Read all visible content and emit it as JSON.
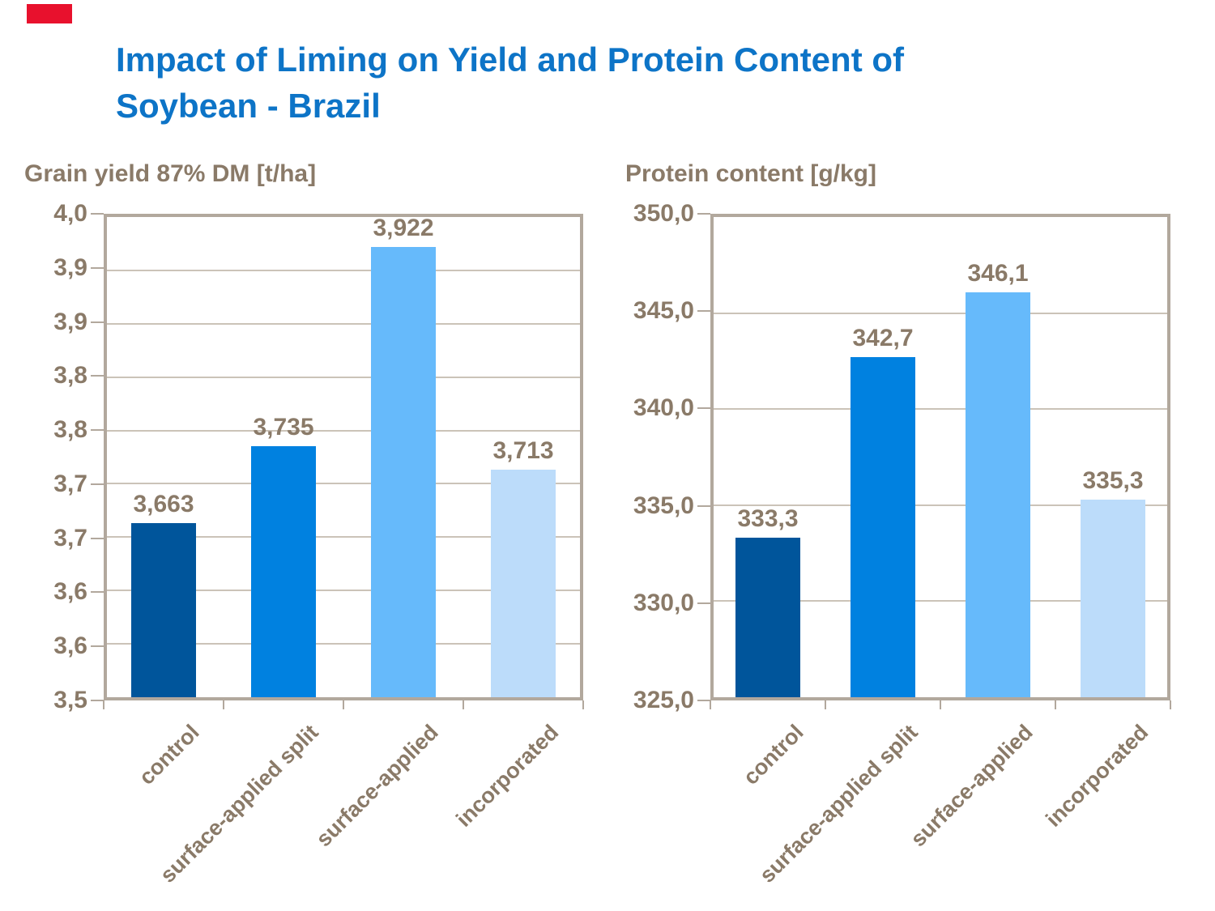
{
  "slide": {
    "title_line1": "Impact of Liming on Yield and Protein Content of",
    "title_line2": "Soybean - Brazil",
    "colors": {
      "title_blue": "#0d74c7",
      "brand_red": "#e8112d",
      "text_brown": "#8a7a68",
      "frame_tan": "#b2a89d",
      "gridline_tan": "#cbc3b8"
    }
  },
  "chart_data": [
    {
      "type": "bar",
      "title": "Grain yield 87% DM [t/ha]",
      "categories": [
        "control",
        "surface-applied split",
        "surface-applied",
        "incorporated"
      ],
      "values": [
        3.663,
        3.735,
        3.922,
        3.713
      ],
      "value_labels": [
        "3,663",
        "3,735",
        "3,922",
        "3,713"
      ],
      "ylim": [
        3.5,
        4.0
      ],
      "plot_ylim": [
        3.5,
        3.95
      ],
      "ytick_labels": [
        "4,0",
        "3,9",
        "3,9",
        "3,8",
        "3,8",
        "3,7",
        "3,7",
        "3,6",
        "3,6",
        "3,5"
      ],
      "bar_colors": [
        "#00559b",
        "#0081e0",
        "#66bafb",
        "#bcdcfa"
      ],
      "grid": true,
      "legend": "none",
      "xlabel": "",
      "ylabel": ""
    },
    {
      "type": "bar",
      "title": "Protein content [g/kg]",
      "categories": [
        "control",
        "surface-applied split",
        "surface-applied",
        "incorporated"
      ],
      "values": [
        333.3,
        342.7,
        346.1,
        335.3
      ],
      "value_labels": [
        "333,3",
        "342,7",
        "346,1",
        "335,3"
      ],
      "ylim": [
        325.0,
        350.0
      ],
      "plot_ylim": [
        325.0,
        350.0
      ],
      "ytick_labels": [
        "350,0",
        "345,0",
        "340,0",
        "335,0",
        "330,0",
        "325,0"
      ],
      "bar_colors": [
        "#00559b",
        "#0081e0",
        "#66bafb",
        "#bcdcfa"
      ],
      "grid": true,
      "legend": "none",
      "xlabel": "",
      "ylabel": ""
    }
  ]
}
